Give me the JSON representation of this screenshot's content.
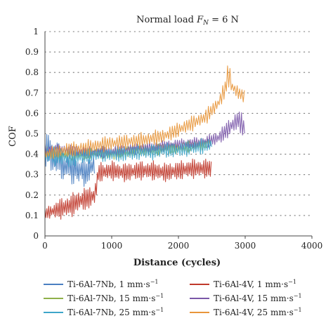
{
  "chart_data": {
    "type": "line",
    "title": "Normal load F_N = 6 N",
    "title_parts": {
      "prefix": "Normal load ",
      "var": "F",
      "sub": "N",
      "suffix": " = 6 N"
    },
    "xlabel": "Distance (cycles)",
    "ylabel": "COF",
    "xlim": [
      0,
      4000
    ],
    "ylim": [
      0,
      1
    ],
    "x_ticks": [
      0,
      1000,
      2000,
      3000,
      4000
    ],
    "y_ticks": [
      0,
      0.1,
      0.2,
      0.3,
      0.4,
      0.5,
      0.6,
      0.7,
      0.8,
      0.9,
      1
    ],
    "x_tick_labels": [
      "0",
      "1000",
      "2000",
      "3000",
      "4000"
    ],
    "y_tick_labels": [
      "0",
      "0.1",
      "0.2",
      "0.3",
      "0.4",
      "0.5",
      "0.6",
      "0.7",
      "0.8",
      "0.9",
      "1"
    ],
    "grid": "horizontal dotted",
    "legend_position": "bottom",
    "series": [
      {
        "name": "Ti-6Al-7Nb, 1 mm·s⁻¹",
        "legend": {
          "base": "Ti-6Al-7Nb, 1 mm·s",
          "sup": "−1"
        },
        "color": "#4a7fc1",
        "x": [
          0,
          50,
          100,
          150,
          200,
          250,
          300,
          350,
          400,
          450,
          500,
          550,
          600,
          650,
          700,
          750
        ],
        "values": [
          0.4,
          0.44,
          0.38,
          0.36,
          0.4,
          0.35,
          0.33,
          0.36,
          0.32,
          0.34,
          0.31,
          0.33,
          0.3,
          0.32,
          0.34,
          0.36
        ],
        "amplitude": [
          0.08,
          0.08,
          0.09,
          0.08,
          0.09,
          0.08,
          0.08,
          0.08,
          0.08,
          0.08,
          0.07,
          0.07,
          0.07,
          0.07,
          0.07,
          0.06
        ]
      },
      {
        "name": "Ti-6Al-4V, 1 mm·s⁻¹",
        "legend": {
          "base": "Ti-6Al-4V, 1 mm·s",
          "sup": "−1"
        },
        "color": "#c0392b",
        "x": [
          0,
          100,
          200,
          300,
          400,
          500,
          600,
          700,
          750,
          800,
          1000,
          1200,
          1400,
          1600,
          1800,
          2000,
          2200,
          2400,
          2500
        ],
        "values": [
          0.11,
          0.12,
          0.13,
          0.14,
          0.15,
          0.17,
          0.18,
          0.19,
          0.2,
          0.31,
          0.32,
          0.31,
          0.32,
          0.32,
          0.31,
          0.32,
          0.33,
          0.33,
          0.33
        ],
        "amplitude": [
          0.03,
          0.04,
          0.05,
          0.06,
          0.06,
          0.06,
          0.06,
          0.06,
          0.06,
          0.05,
          0.05,
          0.05,
          0.05,
          0.05,
          0.05,
          0.05,
          0.05,
          0.05,
          0.05
        ]
      },
      {
        "name": "Ti-6Al-7Nb, 15 mm·s⁻¹",
        "legend": {
          "base": "Ti-6Al-7Nb, 15 mm·s",
          "sup": "−1"
        },
        "color": "#8fb04a",
        "x": [
          0,
          200,
          400,
          600,
          800,
          1000,
          1200,
          1400,
          1600,
          1800,
          2000,
          2200,
          2400,
          2500
        ],
        "values": [
          0.41,
          0.4,
          0.4,
          0.4,
          0.41,
          0.4,
          0.41,
          0.42,
          0.42,
          0.43,
          0.43,
          0.44,
          0.45,
          0.46
        ],
        "amplitude": [
          0.03,
          0.03,
          0.03,
          0.03,
          0.03,
          0.03,
          0.03,
          0.03,
          0.03,
          0.03,
          0.03,
          0.03,
          0.03,
          0.03
        ]
      },
      {
        "name": "Ti-6Al-4V, 15 mm·s⁻¹",
        "legend": {
          "base": "Ti-6Al-4V, 15 mm·s",
          "sup": "−1"
        },
        "color": "#7a57a8",
        "x": [
          0,
          300,
          600,
          900,
          1200,
          1500,
          1800,
          2100,
          2400,
          2600,
          2800,
          2900,
          3000
        ],
        "values": [
          0.42,
          0.42,
          0.41,
          0.41,
          0.42,
          0.43,
          0.44,
          0.45,
          0.46,
          0.48,
          0.54,
          0.57,
          0.52
        ],
        "amplitude": [
          0.03,
          0.03,
          0.03,
          0.03,
          0.03,
          0.03,
          0.03,
          0.03,
          0.03,
          0.04,
          0.05,
          0.06,
          0.05
        ]
      },
      {
        "name": "Ti-6Al-7Nb, 25 mm·s⁻¹",
        "legend": {
          "base": "Ti-6Al-7Nb, 25 mm·s",
          "sup": "−1"
        },
        "color": "#3ea6c9",
        "x": [
          0,
          200,
          400,
          600,
          800,
          1000,
          1200,
          1400,
          1600,
          1800,
          2000,
          2200,
          2400,
          2500
        ],
        "values": [
          0.4,
          0.39,
          0.38,
          0.39,
          0.4,
          0.4,
          0.4,
          0.41,
          0.41,
          0.42,
          0.42,
          0.43,
          0.44,
          0.45
        ],
        "amplitude": [
          0.05,
          0.05,
          0.05,
          0.04,
          0.04,
          0.04,
          0.04,
          0.04,
          0.04,
          0.04,
          0.04,
          0.04,
          0.04,
          0.04
        ]
      },
      {
        "name": "Ti-6Al-4V, 25 mm·s⁻¹",
        "legend": {
          "base": "Ti-6Al-4V, 25 mm·s",
          "sup": "−1"
        },
        "color": "#e8963a",
        "x": [
          0,
          300,
          600,
          900,
          1200,
          1500,
          1800,
          2000,
          2200,
          2400,
          2600,
          2700,
          2750,
          2800,
          2900,
          3000
        ],
        "values": [
          0.4,
          0.42,
          0.43,
          0.45,
          0.46,
          0.47,
          0.49,
          0.52,
          0.55,
          0.58,
          0.65,
          0.72,
          0.8,
          0.73,
          0.7,
          0.68
        ],
        "amplitude": [
          0.03,
          0.04,
          0.04,
          0.04,
          0.04,
          0.04,
          0.04,
          0.04,
          0.04,
          0.04,
          0.04,
          0.05,
          0.08,
          0.04,
          0.04,
          0.03
        ]
      }
    ]
  }
}
